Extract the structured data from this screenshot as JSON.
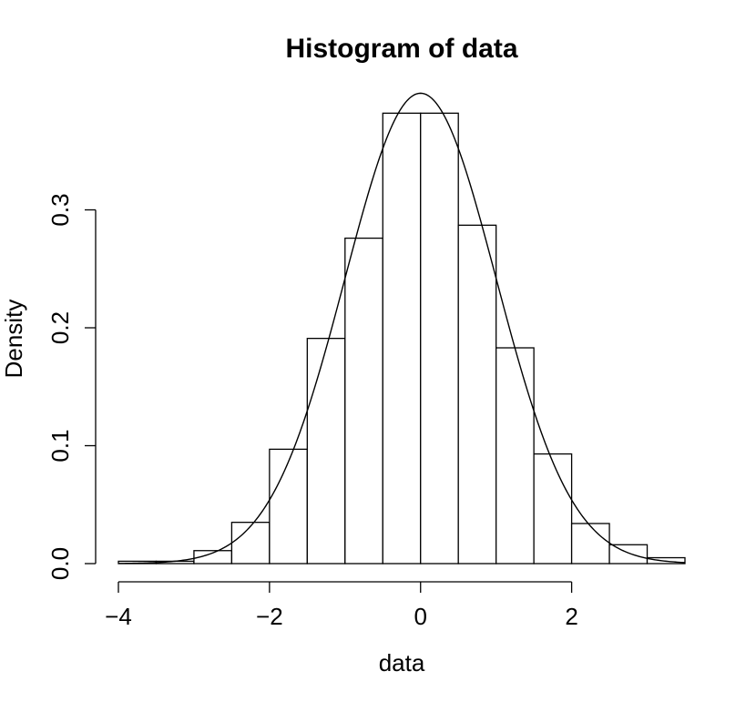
{
  "chart_data": {
    "type": "bar",
    "title": "Histogram of data",
    "xlabel": "data",
    "ylabel": "Density",
    "bins": [
      {
        "x0": -4.0,
        "x1": -3.5,
        "density": 0.002
      },
      {
        "x0": -3.5,
        "x1": -3.0,
        "density": 0.002
      },
      {
        "x0": -3.0,
        "x1": -2.5,
        "density": 0.011
      },
      {
        "x0": -2.5,
        "x1": -2.0,
        "density": 0.035
      },
      {
        "x0": -2.0,
        "x1": -1.5,
        "density": 0.097
      },
      {
        "x0": -1.5,
        "x1": -1.0,
        "density": 0.191
      },
      {
        "x0": -1.0,
        "x1": -0.5,
        "density": 0.276
      },
      {
        "x0": -0.5,
        "x1": 0.0,
        "density": 0.382
      },
      {
        "x0": 0.0,
        "x1": 0.5,
        "density": 0.382
      },
      {
        "x0": 0.5,
        "x1": 1.0,
        "density": 0.287
      },
      {
        "x0": 1.0,
        "x1": 1.5,
        "density": 0.183
      },
      {
        "x0": 1.5,
        "x1": 2.0,
        "density": 0.093
      },
      {
        "x0": 2.0,
        "x1": 2.5,
        "density": 0.034
      },
      {
        "x0": 2.5,
        "x1": 3.0,
        "density": 0.016
      },
      {
        "x0": 3.0,
        "x1": 3.5,
        "density": 0.005
      }
    ],
    "overlay": {
      "type": "line",
      "curve": "normal density",
      "mean": 0,
      "sd": 1
    },
    "xlim": [
      -4,
      3.5
    ],
    "ylim": [
      0,
      0.4
    ],
    "x_ticks": [
      -4,
      -2,
      0,
      2
    ],
    "x_tick_labels": [
      "−4",
      "−2",
      "0",
      "2"
    ],
    "y_ticks": [
      0.0,
      0.1,
      0.2,
      0.3
    ],
    "y_tick_labels": [
      "0.0",
      "0.1",
      "0.2",
      "0.3"
    ],
    "grid": false,
    "legend": "none"
  }
}
